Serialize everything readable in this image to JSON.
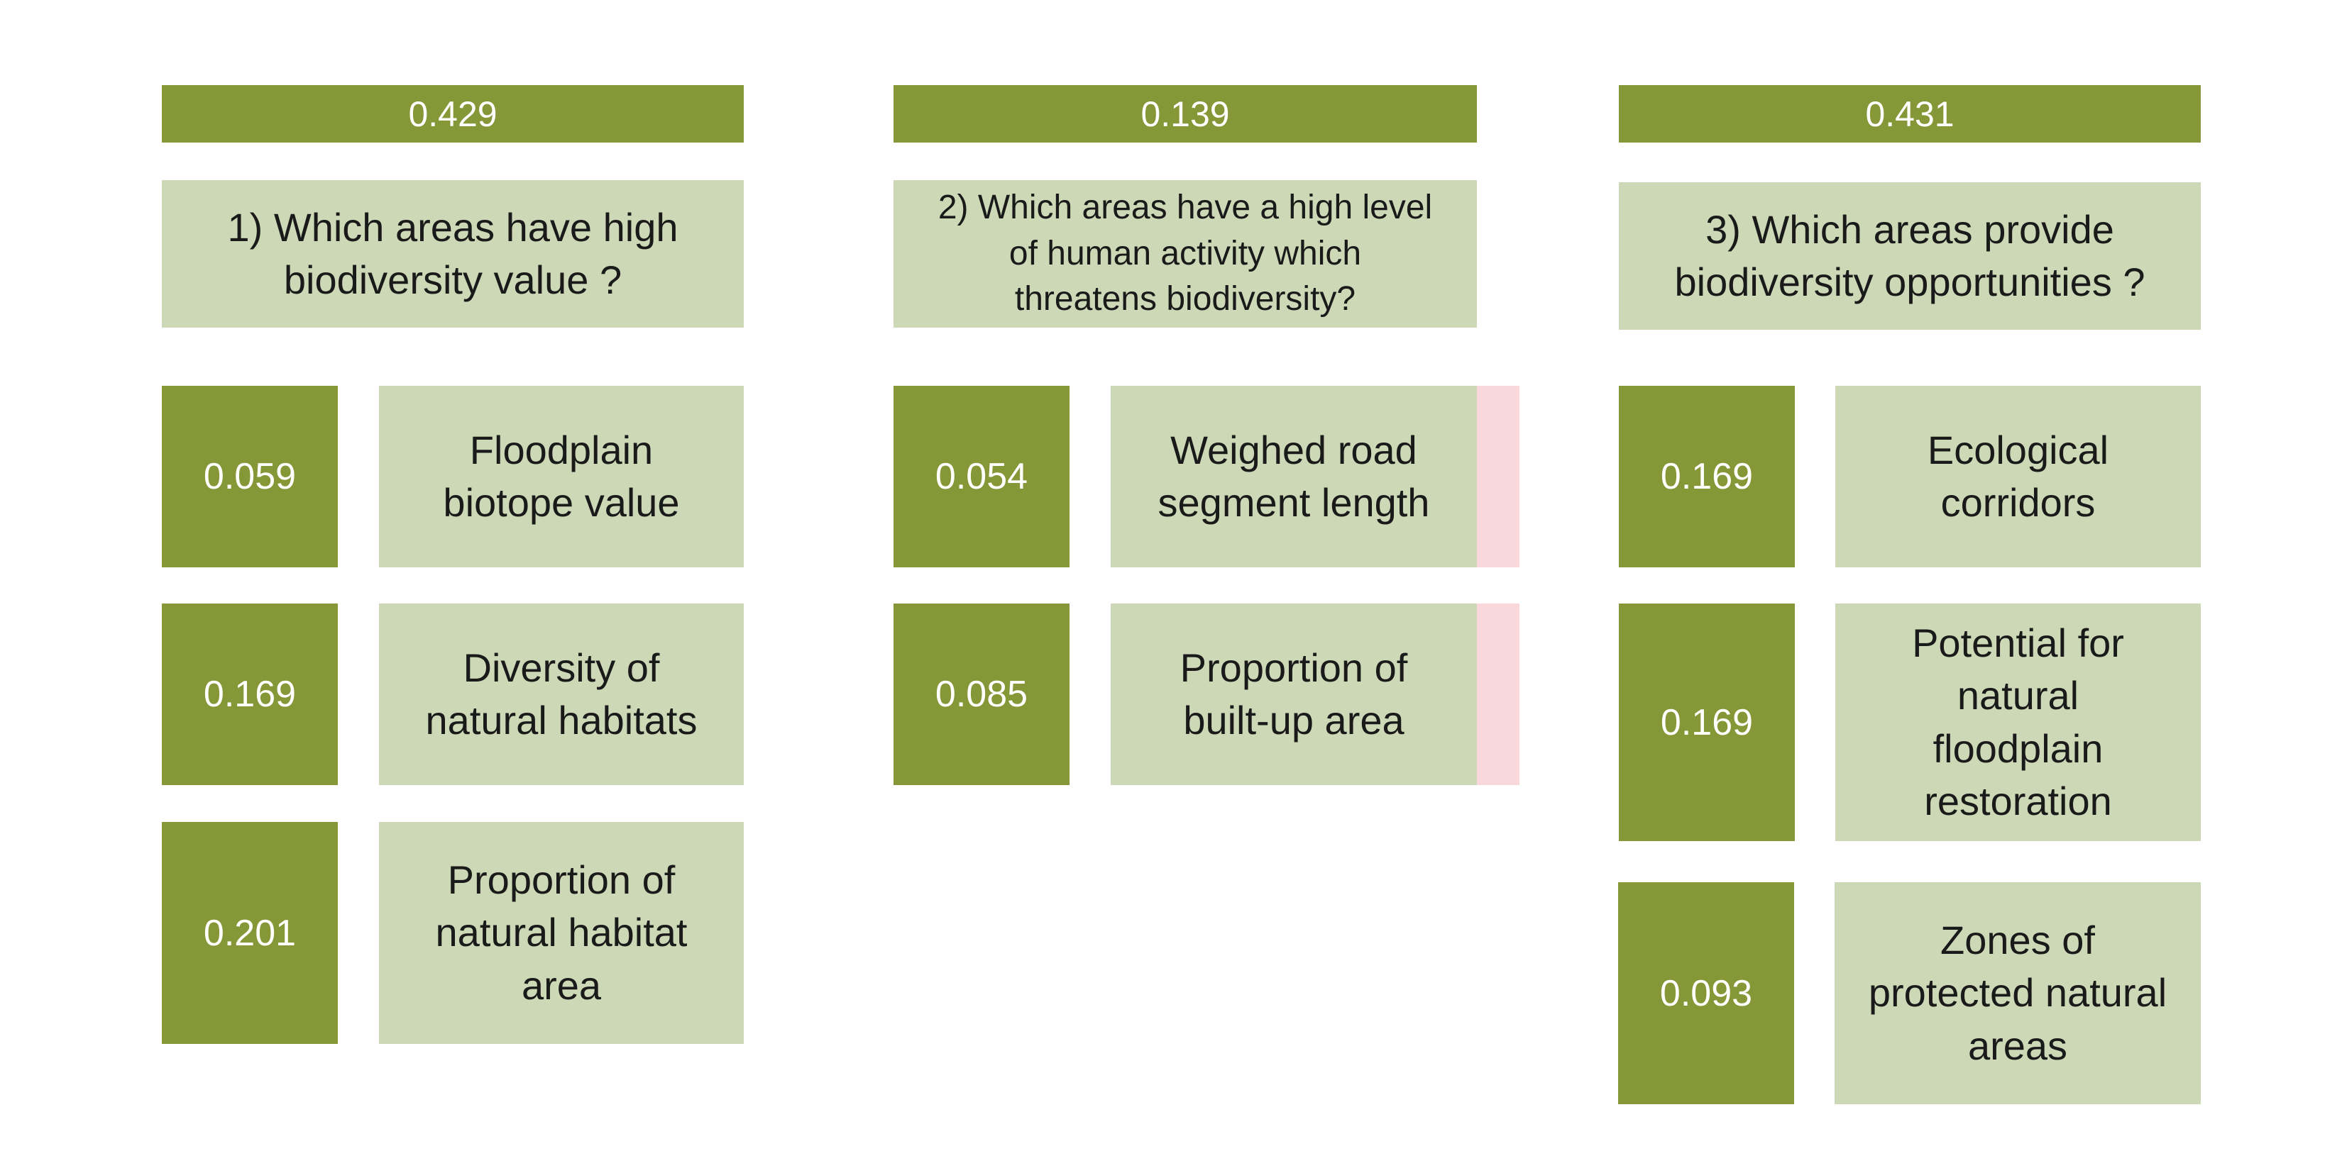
{
  "colors": {
    "header_fill": "#859737",
    "weight_fill": "#859737",
    "label_fill": "#cdd8b6",
    "accent_fill": "#f9d7da",
    "header_text": "#ffffff",
    "label_text": "#1a1a1a"
  },
  "columns": [
    {
      "weight": "0.429",
      "question": "1) Which areas have   high\nbiodiversity value   ?",
      "criteria": [
        {
          "weight": "0.059",
          "label": "Floodplain\nbiotope value"
        },
        {
          "weight": "0.169",
          "label": "Diversity of\nnatural habitats"
        },
        {
          "weight": "0.201",
          "label": "Proportion of\nnatural habitat\narea"
        }
      ]
    },
    {
      "weight": "0.139",
      "question": "2) Which areas have a high level\nof human activity   which\nthreatens   biodiversity?",
      "criteria": [
        {
          "weight": "0.054",
          "label": "Weighed road\nsegment length"
        },
        {
          "weight": "0.085",
          "label": "Proportion of\nbuilt-up area"
        }
      ]
    },
    {
      "weight": "0.431",
      "question": "3) Which areas provide\nbiodiversity opportunities   ?",
      "criteria": [
        {
          "weight": "0.169",
          "label": "Ecological\ncorridors"
        },
        {
          "weight": "0.169",
          "label": "Potential for\nnatural\nfloodplain\nrestoration"
        },
        {
          "weight": "0.093",
          "label": "Zones of\nprotected natural\nareas"
        }
      ]
    }
  ]
}
